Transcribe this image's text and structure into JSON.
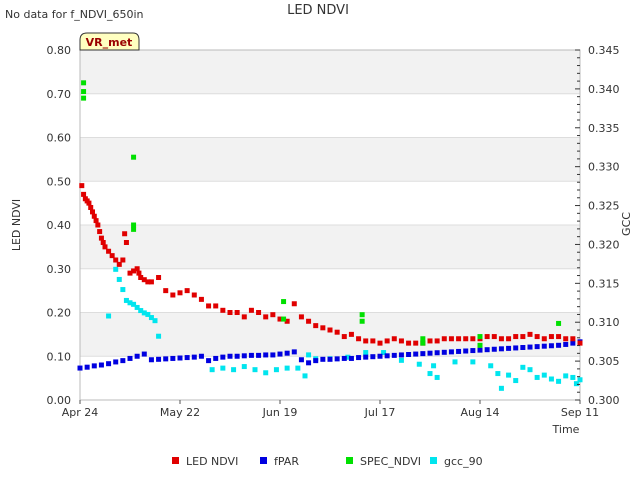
{
  "no_data_note": "No data for f_NDVI_650in",
  "site_badge": "VR_met",
  "chart_data": {
    "type": "scatter",
    "title": "LED NDVI",
    "xlabel": "Time",
    "ylabel_left": "LED NDVI",
    "ylabel_right": "GCC",
    "x_ticks": [
      "Apr 24",
      "May 22",
      "Jun 19",
      "Jul 17",
      "Aug 14",
      "Sep 11"
    ],
    "x_tick_days": [
      0,
      28,
      56,
      84,
      112,
      140
    ],
    "xlim_days": [
      0,
      140
    ],
    "ylim_left": [
      0.0,
      0.8
    ],
    "y_ticks_left": [
      "0.00",
      "0.10",
      "0.20",
      "0.30",
      "0.40",
      "0.50",
      "0.60",
      "0.70",
      "0.80"
    ],
    "ylim_right": [
      0.3,
      0.345
    ],
    "y_ticks_right": [
      "0.300",
      "0.305",
      "0.310",
      "0.315",
      "0.320",
      "0.325",
      "0.330",
      "0.335",
      "0.340",
      "0.345"
    ],
    "legend": [
      {
        "name": "LED NDVI",
        "color": "#e00000"
      },
      {
        "name": "fPAR",
        "color": "#0000e0"
      },
      {
        "name": "SPEC_NDVI",
        "color": "#00e000"
      },
      {
        "name": "gcc_90",
        "color": "#00e5ee"
      }
    ],
    "series": [
      {
        "name": "LED NDVI",
        "axis": "left",
        "color": "#e00000",
        "x": [
          0.5,
          1,
          1.5,
          2,
          2.5,
          3,
          3.5,
          4,
          4.5,
          5,
          5.5,
          6,
          6.5,
          7,
          8,
          9,
          10,
          11,
          12,
          12.5,
          13,
          14,
          15,
          16,
          16.5,
          17,
          18,
          19,
          20,
          22,
          24,
          26,
          28,
          30,
          32,
          34,
          36,
          38,
          40,
          42,
          44,
          46,
          48,
          50,
          52,
          54,
          56,
          58,
          60,
          62,
          64,
          66,
          68,
          70,
          72,
          74,
          76,
          78,
          80,
          82,
          84,
          86,
          88,
          90,
          92,
          94,
          96,
          98,
          100,
          102,
          104,
          106,
          108,
          110,
          112,
          114,
          116,
          118,
          120,
          122,
          124,
          126,
          128,
          130,
          132,
          134,
          136,
          138,
          140
        ],
        "y": [
          0.49,
          0.47,
          0.46,
          0.455,
          0.45,
          0.44,
          0.43,
          0.42,
          0.41,
          0.4,
          0.385,
          0.37,
          0.36,
          0.35,
          0.34,
          0.33,
          0.32,
          0.31,
          0.32,
          0.38,
          0.36,
          0.29,
          0.295,
          0.3,
          0.29,
          0.28,
          0.275,
          0.27,
          0.27,
          0.28,
          0.25,
          0.24,
          0.245,
          0.25,
          0.24,
          0.23,
          0.215,
          0.215,
          0.205,
          0.2,
          0.2,
          0.19,
          0.205,
          0.2,
          0.19,
          0.195,
          0.185,
          0.18,
          0.22,
          0.19,
          0.18,
          0.17,
          0.165,
          0.16,
          0.155,
          0.145,
          0.15,
          0.14,
          0.135,
          0.135,
          0.13,
          0.135,
          0.14,
          0.135,
          0.13,
          0.13,
          0.13,
          0.135,
          0.135,
          0.14,
          0.14,
          0.14,
          0.14,
          0.14,
          0.14,
          0.145,
          0.145,
          0.14,
          0.14,
          0.145,
          0.145,
          0.15,
          0.145,
          0.14,
          0.145,
          0.145,
          0.14,
          0.14,
          0.13
        ]
      },
      {
        "name": "fPAR",
        "axis": "left",
        "color": "#0000e0",
        "x": [
          0,
          2,
          4,
          6,
          8,
          10,
          12,
          14,
          16,
          18,
          20,
          22,
          24,
          26,
          28,
          30,
          32,
          34,
          36,
          38,
          40,
          42,
          44,
          46,
          48,
          50,
          52,
          54,
          56,
          58,
          60,
          62,
          64,
          66,
          68,
          70,
          72,
          74,
          76,
          78,
          80,
          82,
          84,
          86,
          88,
          90,
          92,
          94,
          96,
          98,
          100,
          102,
          104,
          106,
          108,
          110,
          112,
          114,
          116,
          118,
          120,
          122,
          124,
          126,
          128,
          130,
          132,
          134,
          136,
          138,
          140
        ],
        "y": [
          0.073,
          0.075,
          0.078,
          0.08,
          0.083,
          0.087,
          0.09,
          0.095,
          0.1,
          0.105,
          0.092,
          0.093,
          0.094,
          0.095,
          0.096,
          0.097,
          0.098,
          0.1,
          0.09,
          0.095,
          0.098,
          0.1,
          0.1,
          0.101,
          0.102,
          0.102,
          0.103,
          0.103,
          0.105,
          0.107,
          0.11,
          0.092,
          0.085,
          0.09,
          0.093,
          0.093,
          0.094,
          0.095,
          0.095,
          0.097,
          0.098,
          0.099,
          0.1,
          0.101,
          0.102,
          0.103,
          0.104,
          0.105,
          0.106,
          0.107,
          0.108,
          0.109,
          0.11,
          0.111,
          0.112,
          0.113,
          0.114,
          0.115,
          0.116,
          0.117,
          0.118,
          0.119,
          0.12,
          0.121,
          0.122,
          0.123,
          0.124,
          0.125,
          0.127,
          0.13,
          0.133
        ]
      },
      {
        "name": "SPEC_NDVI",
        "axis": "left",
        "color": "#00e000",
        "x": [
          1,
          1,
          1,
          15,
          15,
          15,
          57,
          57,
          79,
          79,
          96,
          96,
          112,
          112,
          134
        ],
        "y": [
          0.69,
          0.705,
          0.725,
          0.555,
          0.39,
          0.4,
          0.225,
          0.185,
          0.195,
          0.18,
          0.13,
          0.14,
          0.145,
          0.125,
          0.175
        ]
      },
      {
        "name": "gcc_90",
        "axis": "right",
        "color": "#00e5ee",
        "x": [
          8,
          10,
          11,
          12,
          13,
          14,
          15,
          16,
          17,
          18,
          19,
          20,
          21,
          22,
          37,
          40,
          43,
          46,
          49,
          52,
          55,
          58,
          61,
          63,
          64,
          66,
          70,
          75,
          80,
          85,
          90,
          95,
          98,
          99,
          100,
          105,
          110,
          115,
          117,
          118,
          120,
          122,
          124,
          126,
          128,
          130,
          132,
          134,
          136,
          138,
          139,
          140
        ],
        "y": [
          0.3108,
          0.3168,
          0.3155,
          0.3142,
          0.3128,
          0.3125,
          0.3123,
          0.3119,
          0.3115,
          0.3112,
          0.311,
          0.3106,
          0.3102,
          0.3082,
          0.3039,
          0.3041,
          0.3039,
          0.3043,
          0.3039,
          0.3035,
          0.3039,
          0.3041,
          0.3041,
          0.3031,
          0.3058,
          0.3053,
          0.3053,
          0.3055,
          0.3061,
          0.3061,
          0.3051,
          0.3046,
          0.3034,
          0.3044,
          0.3029,
          0.3049,
          0.3049,
          0.3044,
          0.3034,
          0.3015,
          0.3032,
          0.3025,
          0.3042,
          0.3039,
          0.3029,
          0.3032,
          0.3027,
          0.3024,
          0.3031,
          0.3029,
          0.3021,
          0.3026
        ]
      }
    ]
  }
}
